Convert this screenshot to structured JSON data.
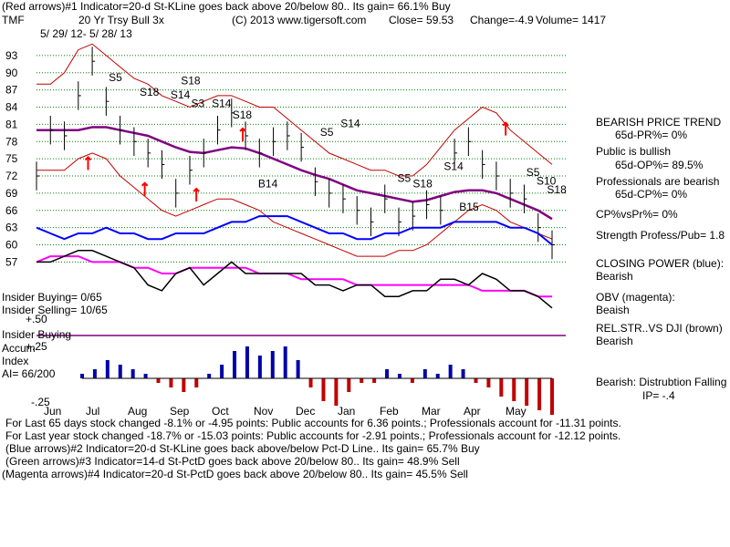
{
  "header": {
    "line1": "(Red arrows)#1 Indicator=20-d St-KLine goes back above 20/below 80.. Its gain= 66.1% Buy",
    "ticker": "TMF",
    "name": "20 Yr Trsy Bull 3x",
    "copyright": "(C) 2013 www.tigersoft.com",
    "close": "Close=  59.53",
    "change": "Change=-4.9",
    "volume": "Volume= 1417",
    "date_range": "5/ 29/ 12-  5/ 28/ 13"
  },
  "chart_data": {
    "type": "line",
    "title": "20 Yr Trsy Bull 3x",
    "price_ticks": [
      "93",
      "90",
      "87",
      "84",
      "81",
      "78",
      "75",
      "72",
      "69",
      "66",
      "63",
      "60",
      "57"
    ],
    "price_tick_values": [
      93,
      90,
      87,
      84,
      81,
      78,
      75,
      72,
      69,
      66,
      63,
      60,
      57
    ],
    "ylim": [
      55,
      96
    ],
    "months": [
      "Jun",
      "Jul",
      "Aug",
      "Sep",
      "Oct",
      "Nov",
      "Dec",
      "Jan",
      "Feb",
      "Mar",
      "Apr",
      "May"
    ],
    "price_close": [
      72,
      80,
      79,
      86,
      92,
      85,
      80,
      78,
      76,
      74,
      69,
      73,
      76,
      80,
      83,
      79,
      76,
      78,
      79,
      77,
      71,
      69,
      68,
      66,
      64,
      68,
      64,
      65,
      67,
      66,
      76,
      78,
      74,
      72,
      69,
      68,
      63,
      60
    ],
    "ma_purple": [
      80,
      80,
      80,
      80,
      80.5,
      80.5,
      80,
      79.5,
      79,
      78,
      77,
      76.2,
      76,
      76.5,
      77,
      76.8,
      76,
      75,
      74,
      73,
      72.2,
      71.5,
      70.5,
      69.5,
      69,
      68.5,
      68,
      67.5,
      67.8,
      68.5,
      69.2,
      69.5,
      69.5,
      69,
      68,
      67,
      66,
      64.5
    ],
    "band_upper": [
      88,
      88,
      90,
      94,
      95,
      93,
      91,
      89,
      88,
      86,
      85,
      84,
      85,
      86,
      86,
      85,
      84,
      84,
      82,
      80,
      78,
      76,
      75,
      74,
      73,
      73,
      72,
      72,
      74,
      77,
      80,
      82,
      84,
      83,
      80,
      78,
      76,
      74
    ],
    "band_lower": [
      73,
      73,
      73,
      75,
      76,
      75,
      72,
      70,
      68,
      66,
      65,
      66,
      67,
      68,
      68,
      67,
      66,
      64,
      63,
      62,
      61,
      60,
      59,
      58,
      58,
      58,
      59,
      59,
      60,
      62,
      64,
      66,
      67,
      66,
      64,
      63,
      62,
      61
    ],
    "closing_power": [
      63,
      62,
      61,
      62,
      62,
      63,
      62,
      62,
      61,
      61,
      62,
      62,
      62,
      63,
      64,
      64,
      65,
      65,
      65,
      64,
      63,
      62,
      62,
      61,
      61,
      62,
      62,
      63,
      63,
      63,
      64,
      64,
      64,
      64,
      63,
      63,
      62,
      60
    ],
    "obv": [
      57,
      58,
      58,
      58,
      57,
      57,
      57,
      56,
      56,
      55,
      55,
      56,
      56,
      56,
      56,
      56,
      55,
      55,
      55,
      54,
      54,
      54,
      54,
      53,
      53,
      53,
      53,
      53,
      53,
      53,
      53,
      53,
      52,
      52,
      52,
      52,
      51,
      51
    ],
    "rel_strength": [
      57,
      57,
      58,
      59,
      59,
      58,
      57,
      56,
      53,
      52,
      55,
      56,
      53,
      55,
      57,
      55,
      55,
      55,
      55,
      55,
      53,
      53,
      52,
      53,
      53,
      51,
      51,
      52,
      52,
      54,
      54,
      53,
      55,
      54,
      52,
      52,
      51,
      49
    ],
    "signal_labels": [
      {
        "text": "S5",
        "x": 0.14,
        "y": 88.5
      },
      {
        "text": "S18",
        "x": 0.2,
        "y": 86
      },
      {
        "text": "S18",
        "x": 0.28,
        "y": 88
      },
      {
        "text": "S14",
        "x": 0.26,
        "y": 85.5
      },
      {
        "text": "S3",
        "x": 0.3,
        "y": 84
      },
      {
        "text": "S14",
        "x": 0.34,
        "y": 84
      },
      {
        "text": "S18",
        "x": 0.38,
        "y": 82
      },
      {
        "text": "S14",
        "x": 0.59,
        "y": 80.5
      },
      {
        "text": "S5",
        "x": 0.55,
        "y": 79
      },
      {
        "text": "B14",
        "x": 0.43,
        "y": 70
      },
      {
        "text": "S14",
        "x": 0.79,
        "y": 73
      },
      {
        "text": "S5",
        "x": 0.7,
        "y": 71
      },
      {
        "text": "S18",
        "x": 0.73,
        "y": 70
      },
      {
        "text": "B15",
        "x": 0.82,
        "y": 66
      },
      {
        "text": "S5",
        "x": 0.95,
        "y": 72
      },
      {
        "text": "S10",
        "x": 0.97,
        "y": 70.5
      },
      {
        "text": "S18",
        "x": 0.99,
        "y": 69
      }
    ],
    "accum_ticks": [
      "+.50",
      "+.25",
      "-.25"
    ],
    "accum_hist": [
      0.05,
      0.1,
      0.2,
      0.15,
      0.1,
      0.05,
      -0.05,
      -0.1,
      -0.15,
      -0.1,
      0.05,
      0.15,
      0.3,
      0.35,
      0.25,
      0.3,
      0.35,
      0.2,
      -0.1,
      -0.25,
      -0.3,
      -0.15,
      -0.05,
      -0.05,
      0.1,
      0.05,
      -0.05,
      0.1,
      0.05,
      0.15,
      0.1,
      -0.05,
      -0.1,
      -0.2,
      -0.25,
      -0.3,
      -0.35,
      -0.4
    ]
  },
  "right_panel": {
    "trend_title": "BEARISH PRICE TREND",
    "pr": "65d-PR%= 0%",
    "public": "Public is bullish",
    "op": "65d-OP%= 89.5%",
    "pros": "Professionals are bearish",
    "cp": "65d-CP%= 0%",
    "cpvspr": "CP%vsPr%=  0%",
    "strength": "Strength Profess/Pub= 1.8",
    "closing_power_label": "CLOSING POWER (blue):",
    "closing_power_val": "Bearish",
    "obv_label": "OBV (magenta):",
    "obv_val": "Beaish",
    "rel_label": "REL.STR..VS DJI (brown)",
    "rel_val": "Bearish",
    "dist_label": "Bearish:  Distrubtion Falling",
    "ip": "IP= -.4"
  },
  "insider": {
    "buying": "Insider Buying= 0/65",
    "selling": "Insider Selling= 10/65",
    "buying_line": "Insider Buying",
    "accum": "Accum",
    "index": "Index",
    "ai": "AI= 66/200"
  },
  "footer": {
    "line1": "For Last 65 days stock changed -8.1% or -4.95 points:  Public accounts for  6.36 points.;  Professionals account for -11.31 points.",
    "line2": "For Last year stock changed -18.7% or -15.03 points:  Public accounts for  -2.91 points.;  Professionals account for -12.12 points.",
    "line3": "(Blue arrows)#2 Indicator=20-d St-KLine goes back above/below Pct-D Line.. Its gain= 65.7% Buy",
    "line4": "(Green arrows)#3 Indicator=14-d St-PctD goes back above 20/below 80.. Its gain= 48.9% Sell",
    "line5": "(Magenta arrows)#4 Indicator=20-d St-PctD goes back above 20/below 80.. Its gain= 45.5% Sell"
  },
  "colors": {
    "price": "#000000",
    "ma": "#800080",
    "band": "#c00000",
    "closing_power": "#0000ff",
    "obv": "#ff00ff",
    "rel": "#000000",
    "arrow": "#ff0000",
    "grid": "#008000"
  }
}
